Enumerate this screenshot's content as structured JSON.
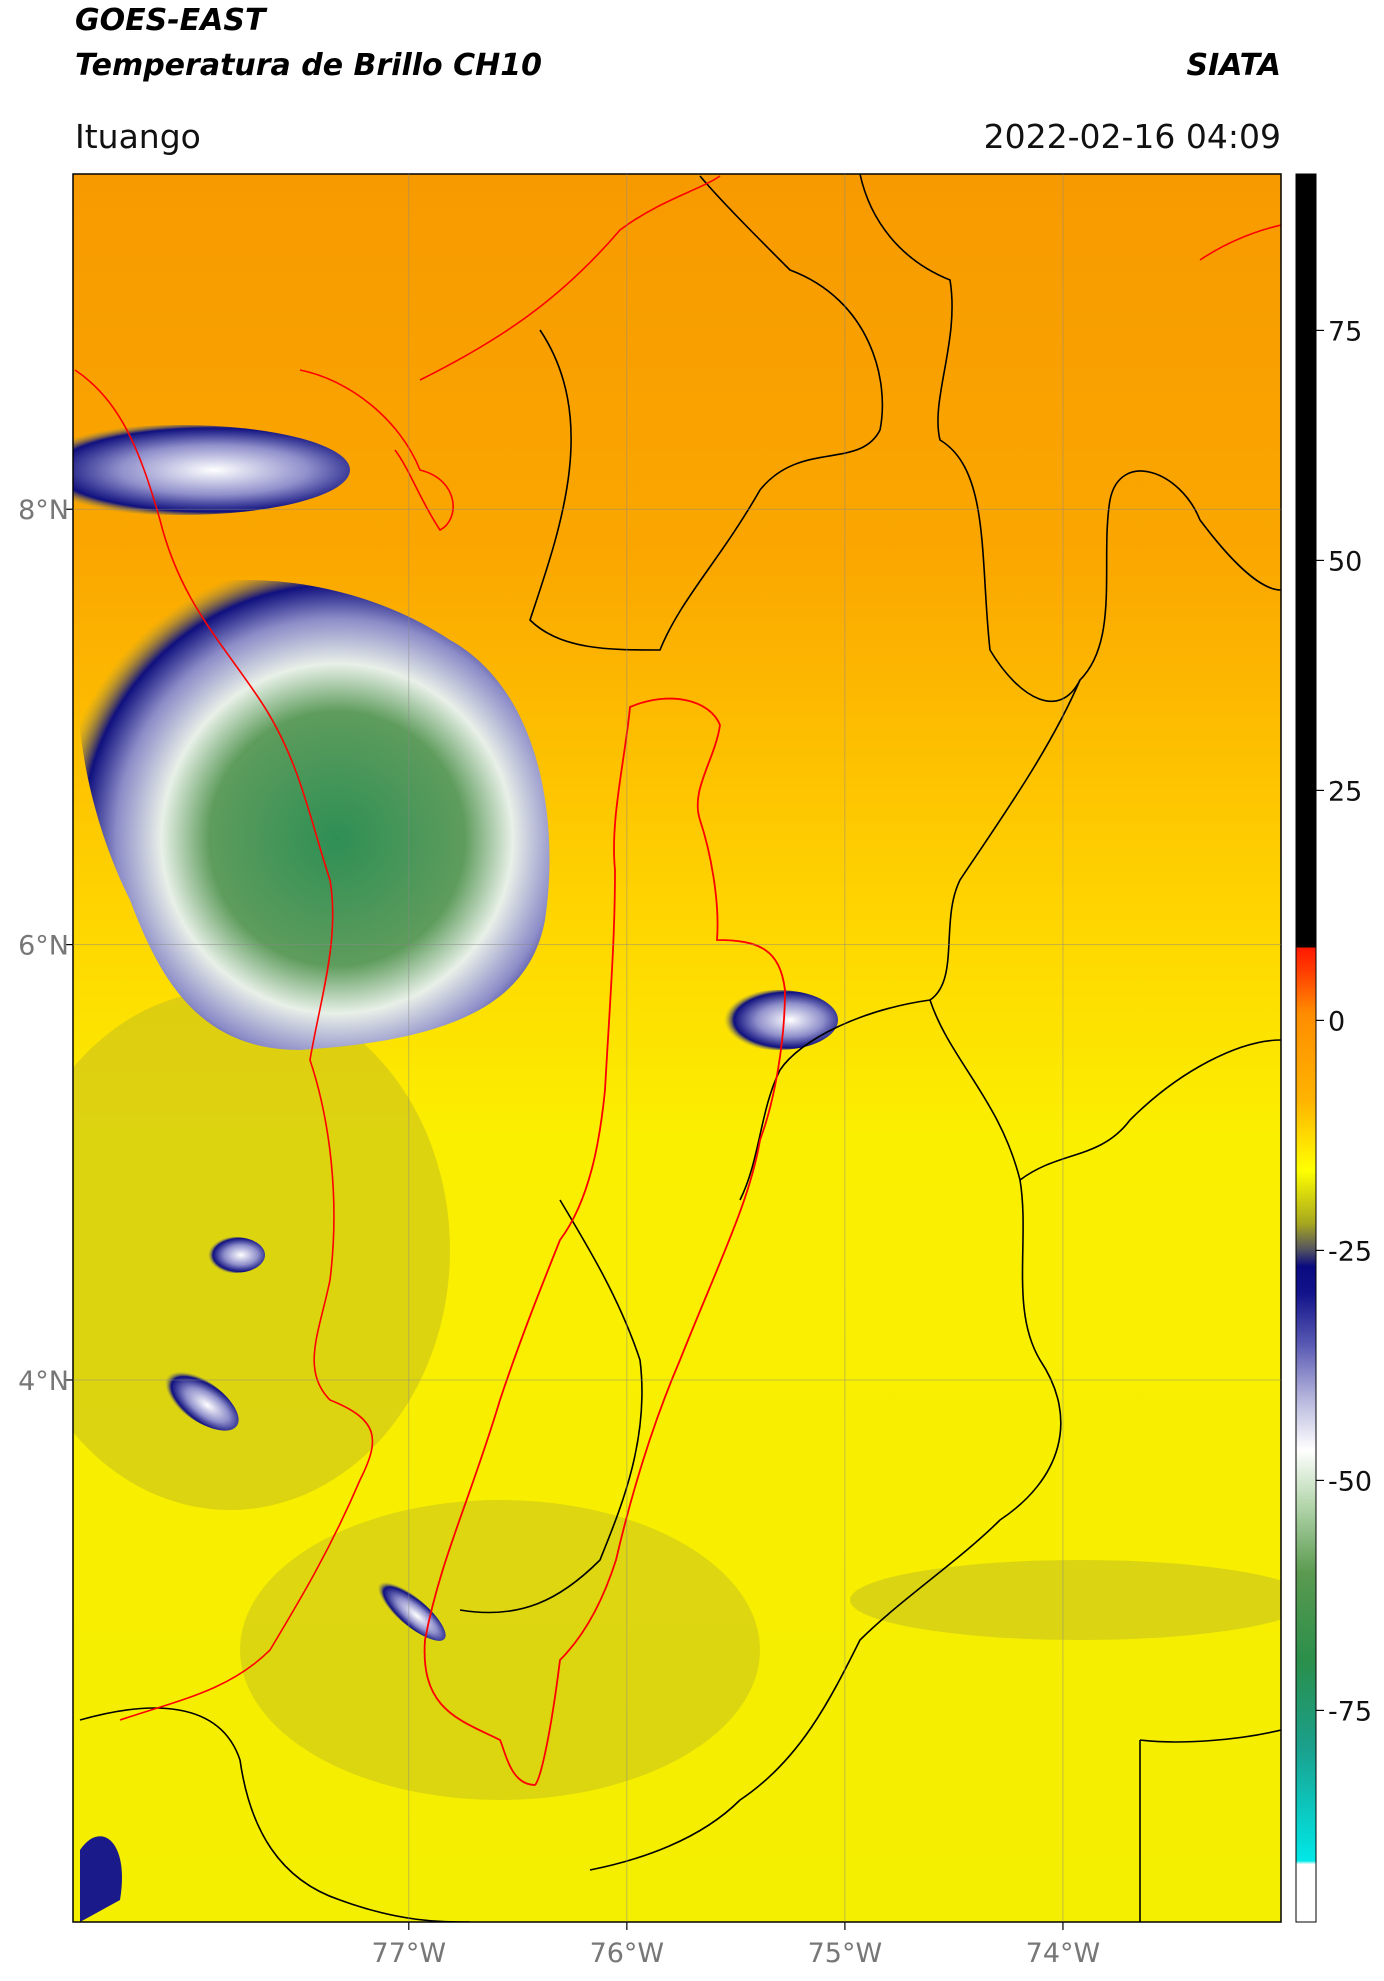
{
  "chart_data": {
    "type": "map",
    "title": "GOES-EAST",
    "subtitle": "Temperatura de Brillo CH10",
    "source": "SIATA",
    "location": "Ituango",
    "datetime": "2022-02-16 04:09",
    "xlim": [
      -78.54,
      -73.0
    ],
    "ylim": [
      1.51,
      9.54
    ],
    "xticks": [
      {
        "value": -77,
        "label": "77°W"
      },
      {
        "value": -76,
        "label": "76°W"
      },
      {
        "value": -75,
        "label": "75°W"
      },
      {
        "value": -74,
        "label": "74°W"
      }
    ],
    "yticks": [
      {
        "value": 8,
        "label": "8°N"
      },
      {
        "value": 6,
        "label": "6°N"
      },
      {
        "value": 4,
        "label": "4°N"
      }
    ],
    "grid": true,
    "colorbar": {
      "lim": [
        -98,
        92
      ],
      "ticks": [
        75,
        50,
        25,
        0,
        -25,
        -50,
        -75
      ]
    }
  }
}
